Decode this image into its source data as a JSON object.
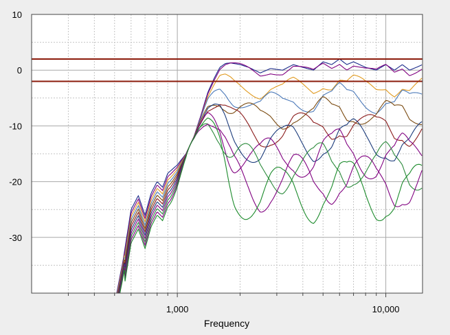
{
  "chart_data": {
    "type": "line",
    "title": "",
    "xlabel": "Frequency",
    "ylabel": "",
    "x_scale": "log",
    "xlim": [
      200,
      15000
    ],
    "ylim": [
      -40,
      10
    ],
    "y_ticks": [
      10,
      0,
      -10,
      -20,
      -30
    ],
    "x_ticks": [
      1000,
      10000
    ],
    "x_tick_labels": [
      "1,000",
      "10,000"
    ],
    "grid": true,
    "legend": "none",
    "reference_lines": [
      {
        "y": 2,
        "color": "#8b1a0a"
      },
      {
        "y": -2,
        "color": "#8b1a0a"
      }
    ],
    "x": [
      500,
      550,
      600,
      650,
      700,
      750,
      800,
      850,
      900,
      1000,
      1100,
      1200,
      1300,
      1400,
      1500,
      1600,
      1700,
      1800,
      2000,
      2200,
      2500,
      2800,
      3200,
      3600,
      4000,
      4500,
      5000,
      5500,
      6000,
      6500,
      7000,
      8000,
      9000,
      10000,
      11000,
      12000,
      13000,
      14000,
      15000
    ],
    "base_curve": [
      -42,
      -34,
      -25,
      -22.5,
      -26,
      -22,
      -20,
      -21,
      -18.5,
      -17,
      -15,
      -12,
      -8,
      -4,
      -1.5,
      0.5,
      1.2,
      1.3,
      1,
      0.5,
      -0.5,
      0.3,
      0,
      1,
      0.5,
      0,
      1.5,
      1,
      2,
      1,
      1.5,
      0.5,
      0,
      1,
      0,
      1,
      0,
      0.5,
      1
    ],
    "series": [
      {
        "color": "#1a2a8a",
        "offset": 0,
        "amp": 0
      },
      {
        "color": "#800080",
        "offset": -0.4,
        "amp": 0.6
      },
      {
        "color": "#e09a20",
        "offset": -3.5,
        "amp": 1.3
      },
      {
        "color": "#4a78b8",
        "offset": -6,
        "amp": 1.8
      },
      {
        "color": "#7a4a10",
        "offset": -8.5,
        "amp": 2.3
      },
      {
        "color": "#8a1a1a",
        "offset": -11,
        "amp": 2.8
      },
      {
        "color": "#1a3a7a",
        "offset": -13.5,
        "amp": 3.3
      },
      {
        "color": "#800080",
        "offset": -16,
        "amp": 3.8
      },
      {
        "color": "#2a8a3a",
        "offset": -18,
        "amp": 4.2
      },
      {
        "color": "#800080",
        "offset": -20.5,
        "amp": 4.6
      },
      {
        "color": "#1a8a2a",
        "offset": -22.5,
        "amp": 5
      }
    ],
    "series_low_drop": [
      0,
      0.6,
      1.2,
      1.8,
      2.4,
      3.0,
      3.6,
      4.2,
      4.8,
      5.4,
      6.0
    ]
  }
}
